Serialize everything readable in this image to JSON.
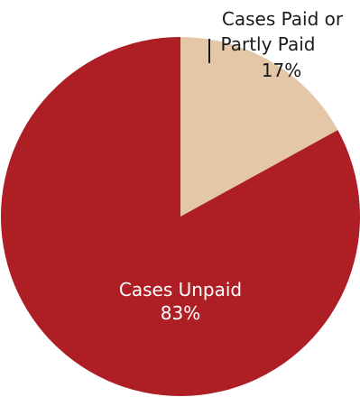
{
  "chart_data": {
    "type": "pie",
    "slices": [
      {
        "label": "Cases Paid or Partly Paid",
        "value": 17,
        "value_text": "17%",
        "color": "#e3c7a6",
        "label_lines": [
          "Cases Paid or",
          "Partly Paid"
        ]
      },
      {
        "label": "Cases Unpaid",
        "value": 83,
        "value_text": "83%",
        "color": "#ae1f25",
        "label_lines": [
          "Cases Unpaid"
        ]
      }
    ],
    "start_angle": "12 o'clock, clockwise",
    "legend": "none (labels placed on/near slices)"
  }
}
